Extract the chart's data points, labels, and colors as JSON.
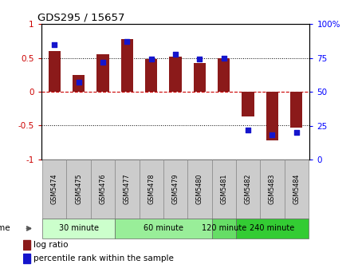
{
  "title": "GDS295 / 15657",
  "samples": [
    "GSM5474",
    "GSM5475",
    "GSM5476",
    "GSM5477",
    "GSM5478",
    "GSM5479",
    "GSM5480",
    "GSM5481",
    "GSM5482",
    "GSM5483",
    "GSM5484"
  ],
  "log_ratio": [
    0.6,
    0.25,
    0.55,
    0.78,
    0.48,
    0.52,
    0.42,
    0.5,
    -0.37,
    -0.72,
    -0.53
  ],
  "percentile": [
    85,
    57,
    72,
    87,
    74,
    78,
    74,
    75,
    22,
    18,
    20
  ],
  "bar_color": "#8B1A1A",
  "dot_color": "#1515CC",
  "ylim_left": [
    -1,
    1
  ],
  "ylim_right": [
    0,
    100
  ],
  "yticks_left": [
    -1,
    -0.5,
    0,
    0.5,
    1
  ],
  "ytick_labels_left": [
    "-1",
    "-0.5",
    "0",
    "0.5",
    "1"
  ],
  "yticks_right": [
    0,
    25,
    50,
    75,
    100
  ],
  "ytick_labels_right": [
    "0",
    "25",
    "50",
    "75",
    "100%"
  ],
  "time_groups": [
    {
      "label": "30 minute",
      "start": 0,
      "end": 2,
      "color": "#ccffcc"
    },
    {
      "label": "60 minute",
      "start": 3,
      "end": 6,
      "color": "#99ee99"
    },
    {
      "label": "120 minute",
      "start": 7,
      "end": 7,
      "color": "#66dd66"
    },
    {
      "label": "240 minute",
      "start": 8,
      "end": 10,
      "color": "#33cc33"
    }
  ],
  "time_label": "time",
  "legend_bar_label": "log ratio",
  "legend_dot_label": "percentile rank within the sample",
  "bar_width": 0.5,
  "background_color": "#ffffff"
}
